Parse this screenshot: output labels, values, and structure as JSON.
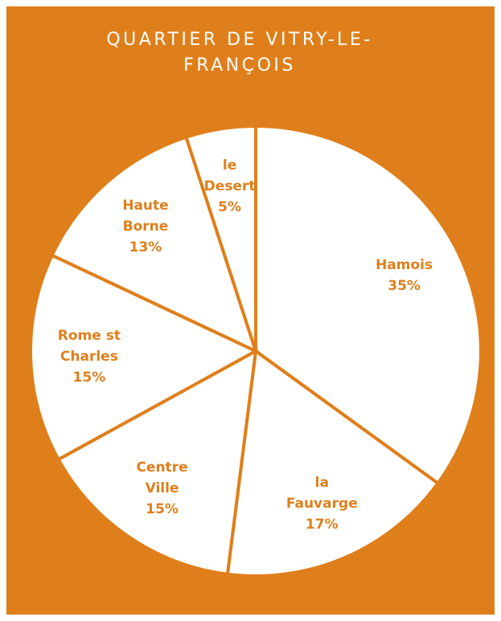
{
  "chart_data": {
    "type": "pie",
    "title": "QUARTIER DE VITRY-LE-FRANÇOIS",
    "categories": [
      "Hamois",
      "la Fauvarge",
      "Centre Ville",
      "Rome st Charles",
      "Haute Borne",
      "le Desert"
    ],
    "values": [
      35,
      17,
      15,
      15,
      13,
      5
    ],
    "value_labels": [
      "35%",
      "17%",
      "15%",
      "15%",
      "13%",
      "5%"
    ],
    "color": "#df7f1b",
    "slice_color": "#ffffff"
  }
}
